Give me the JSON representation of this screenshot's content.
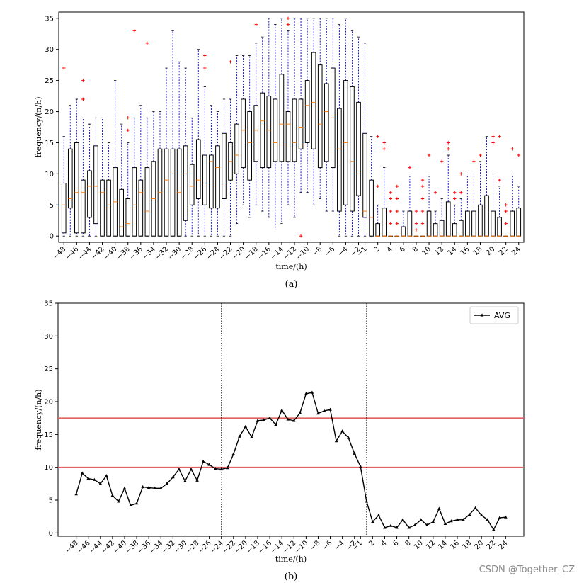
{
  "chart_data": [
    {
      "panel_label": "(a)",
      "type": "box",
      "xlabel": "time/(h)",
      "ylabel": "frequency/(n/h)",
      "ylim": [
        -1,
        36
      ],
      "yticks": [
        0,
        5,
        10,
        15,
        20,
        25,
        30,
        35
      ],
      "colors": {
        "box": "#000000",
        "whisker": "#0000cc",
        "median": "#ff7f0e",
        "flier": "#ff0000"
      },
      "grid": false,
      "x": [
        -48,
        -47,
        -46,
        -45,
        -44,
        -43,
        -42,
        -41,
        -40,
        -39,
        -38,
        -37,
        -36,
        -35,
        -34,
        -33,
        -32,
        -31,
        -30,
        -29,
        -28,
        -27,
        -26,
        -25,
        -24,
        -23,
        -22,
        -21,
        -20,
        -19,
        -18,
        -17,
        -16,
        -15,
        -14,
        -13,
        -12,
        -11,
        -10,
        -9,
        -8,
        -7,
        -6,
        -5,
        -4,
        -3,
        -2,
        -1,
        1,
        2,
        3,
        4,
        5,
        6,
        7,
        8,
        9,
        10,
        11,
        12,
        13,
        14,
        15,
        16,
        17,
        18,
        19,
        20,
        21,
        22,
        23,
        24
      ],
      "xtick_labels": [
        "−48",
        "−46",
        "−44",
        "−42",
        "−40",
        "−38",
        "−36",
        "−34",
        "−32",
        "−30",
        "−28",
        "−26",
        "−24",
        "−22",
        "−20",
        "−18",
        "−16",
        "−14",
        "−12",
        "−10",
        "−8",
        "−6",
        "−4",
        "−2",
        "−1",
        "2",
        "4",
        "6",
        "8",
        "10",
        "12",
        "14",
        "16",
        "18",
        "20",
        "22",
        "24"
      ],
      "xtick_values": [
        -48,
        -46,
        -44,
        -42,
        -40,
        -38,
        -36,
        -34,
        -32,
        -30,
        -28,
        -26,
        -24,
        -22,
        -20,
        -18,
        -16,
        -14,
        -12,
        -10,
        -8,
        -6,
        -4,
        -2,
        -1,
        2,
        4,
        6,
        8,
        10,
        12,
        14,
        16,
        18,
        20,
        22,
        24
      ],
      "boxes": [
        {
          "min": 0,
          "q1": 0.5,
          "med": 5,
          "q3": 8.5,
          "max": 16,
          "fliers": [
            27
          ]
        },
        {
          "min": 0,
          "q1": 4.5,
          "med": 6,
          "q3": 14,
          "max": 21,
          "fliers": []
        },
        {
          "min": 0,
          "q1": 0.5,
          "med": 7,
          "q3": 15,
          "max": 22,
          "fliers": []
        },
        {
          "min": 0,
          "q1": 0.5,
          "med": 7,
          "q3": 9,
          "max": 19,
          "fliers": [
            22,
            22,
            25
          ]
        },
        {
          "min": 0,
          "q1": 3,
          "med": 8,
          "q3": 10.5,
          "max": 18,
          "fliers": []
        },
        {
          "min": 0,
          "q1": 2,
          "med": 8,
          "q3": 14.5,
          "max": 19,
          "fliers": []
        },
        {
          "min": 0,
          "q1": 0,
          "med": 7,
          "q3": 9,
          "max": 19,
          "fliers": []
        },
        {
          "min": 0,
          "q1": 0,
          "med": 5,
          "q3": 9,
          "max": 15,
          "fliers": []
        },
        {
          "min": 0,
          "q1": 0,
          "med": 5.5,
          "q3": 11,
          "max": 25,
          "fliers": []
        },
        {
          "min": 0,
          "q1": 0,
          "med": 1.5,
          "q3": 7.5,
          "max": 18,
          "fliers": []
        },
        {
          "min": 0,
          "q1": 0,
          "med": 2,
          "q3": 6,
          "max": 15,
          "fliers": [
            17,
            19
          ]
        },
        {
          "min": 0,
          "q1": 0,
          "med": 5,
          "q3": 11,
          "max": 19,
          "fliers": [
            33
          ]
        },
        {
          "min": 0,
          "q1": 0,
          "med": 7,
          "q3": 9,
          "max": 21,
          "fliers": []
        },
        {
          "min": 0,
          "q1": 0,
          "med": 4,
          "q3": 11,
          "max": 19,
          "fliers": [
            31
          ]
        },
        {
          "min": 0,
          "q1": 0,
          "med": 6,
          "q3": 12,
          "max": 20,
          "fliers": []
        },
        {
          "min": 0,
          "q1": 0,
          "med": 7,
          "q3": 14,
          "max": 20,
          "fliers": []
        },
        {
          "min": 0,
          "q1": 0,
          "med": 9,
          "q3": 14,
          "max": 27,
          "fliers": []
        },
        {
          "min": 0,
          "q1": 0,
          "med": 10,
          "q3": 14,
          "max": 33,
          "fliers": []
        },
        {
          "min": 0,
          "q1": 0,
          "med": 7,
          "q3": 14,
          "max": 28,
          "fliers": []
        },
        {
          "min": 0,
          "q1": 2.5,
          "med": 10,
          "q3": 14.5,
          "max": 27,
          "fliers": []
        },
        {
          "min": 0,
          "q1": 5,
          "med": 8,
          "q3": 11.5,
          "max": 19,
          "fliers": []
        },
        {
          "min": 0,
          "q1": 6,
          "med": 9,
          "q3": 15.5,
          "max": 30,
          "fliers": []
        },
        {
          "min": 0,
          "q1": 5,
          "med": 8.5,
          "q3": 13,
          "max": 24,
          "fliers": [
            27,
            29
          ]
        },
        {
          "min": 0,
          "q1": 4.5,
          "med": 12,
          "q3": 13,
          "max": 21,
          "fliers": []
        },
        {
          "min": 0,
          "q1": 4.5,
          "med": 11,
          "q3": 14.5,
          "max": 20,
          "fliers": []
        },
        {
          "min": 0,
          "q1": 6,
          "med": 8.5,
          "q3": 16.5,
          "max": 22,
          "fliers": []
        },
        {
          "min": 0,
          "q1": 9,
          "med": 12,
          "q3": 15,
          "max": 22,
          "fliers": [
            28
          ]
        },
        {
          "min": 2,
          "q1": 10,
          "med": 13,
          "q3": 18,
          "max": 29,
          "fliers": []
        },
        {
          "min": 5,
          "q1": 11,
          "med": 17,
          "q3": 22,
          "max": 29,
          "fliers": []
        },
        {
          "min": 3,
          "q1": 9,
          "med": 15,
          "q3": 20,
          "max": 29,
          "fliers": []
        },
        {
          "min": 5,
          "q1": 12,
          "med": 17,
          "q3": 21,
          "max": 31,
          "fliers": [
            34
          ]
        },
        {
          "min": 4,
          "q1": 11,
          "med": 18.5,
          "q3": 23,
          "max": 32,
          "fliers": []
        },
        {
          "min": 3,
          "q1": 11,
          "med": 17,
          "q3": 22.5,
          "max": 35,
          "fliers": []
        },
        {
          "min": 1,
          "q1": 12,
          "med": 15,
          "q3": 22,
          "max": 34,
          "fliers": []
        },
        {
          "min": 2,
          "q1": 12,
          "med": 18,
          "q3": 26,
          "max": 35,
          "fliers": []
        },
        {
          "min": 5,
          "q1": 12,
          "med": 18,
          "q3": 20,
          "max": 33,
          "fliers": [
            34,
            35
          ]
        },
        {
          "min": 3,
          "q1": 12,
          "med": 15,
          "q3": 22,
          "max": 35,
          "fliers": []
        },
        {
          "min": 7,
          "q1": 14,
          "med": 17.5,
          "q3": 22,
          "max": 35,
          "fliers": [
            0
          ]
        },
        {
          "min": 7,
          "q1": 15,
          "med": 21,
          "q3": 25,
          "max": 35,
          "fliers": []
        },
        {
          "min": 5,
          "q1": 14,
          "med": 21.5,
          "q3": 29.5,
          "max": 35,
          "fliers": []
        },
        {
          "min": 6,
          "q1": 11,
          "med": 18,
          "q3": 27.5,
          "max": 35,
          "fliers": []
        },
        {
          "min": 4,
          "q1": 12,
          "med": 20,
          "q3": 24.5,
          "max": 35,
          "fliers": []
        },
        {
          "min": 4,
          "q1": 11,
          "med": 19,
          "q3": 27,
          "max": 35,
          "fliers": []
        },
        {
          "min": 0,
          "q1": 4,
          "med": 14,
          "q3": 20.5,
          "max": 34,
          "fliers": []
        },
        {
          "min": 0,
          "q1": 5,
          "med": 15,
          "q3": 25,
          "max": 35,
          "fliers": []
        },
        {
          "min": 0,
          "q1": 4,
          "med": 12,
          "q3": 24,
          "max": 33,
          "fliers": []
        },
        {
          "min": 0,
          "q1": 6.5,
          "med": 10,
          "q3": 21.5,
          "max": 32,
          "fliers": []
        },
        {
          "min": 0,
          "q1": 3,
          "med": 4,
          "q3": 16.5,
          "max": 31,
          "fliers": []
        },
        {
          "min": 0,
          "q1": 0,
          "med": 3,
          "q3": 9,
          "max": 16,
          "fliers": []
        },
        {
          "min": 0,
          "q1": 0,
          "med": 0,
          "q3": 2,
          "max": 5,
          "fliers": [
            8,
            16
          ]
        },
        {
          "min": 0,
          "q1": 0,
          "med": 0,
          "q3": 4.5,
          "max": 11,
          "fliers": [
            14,
            15
          ]
        },
        {
          "min": 0,
          "q1": 0,
          "med": 0,
          "q3": 0,
          "max": 0,
          "fliers": [
            2,
            4,
            6,
            7
          ]
        },
        {
          "min": 0,
          "q1": 0,
          "med": 0,
          "q3": 0,
          "max": 0,
          "fliers": [
            2,
            4,
            6,
            8
          ]
        },
        {
          "min": 0,
          "q1": 0,
          "med": 0,
          "q3": 1.5,
          "max": 4,
          "fliers": []
        },
        {
          "min": 0,
          "q1": 0,
          "med": 0,
          "q3": 4,
          "max": 10,
          "fliers": [
            11
          ]
        },
        {
          "min": 0,
          "q1": 0,
          "med": 0,
          "q3": 0,
          "max": 0,
          "fliers": [
            1,
            2,
            4
          ]
        },
        {
          "min": 0,
          "q1": 0,
          "med": 0,
          "q3": 0,
          "max": 0,
          "fliers": [
            2,
            4,
            6,
            8,
            9
          ]
        },
        {
          "min": 0,
          "q1": 0,
          "med": 0,
          "q3": 4,
          "max": 10,
          "fliers": [
            13
          ]
        },
        {
          "min": 0,
          "q1": 0,
          "med": 0,
          "q3": 2,
          "max": 4,
          "fliers": [
            7
          ]
        },
        {
          "min": 0,
          "q1": 0,
          "med": 0,
          "q3": 2.5,
          "max": 6,
          "fliers": [
            12
          ]
        },
        {
          "min": 0,
          "q1": 0,
          "med": 0,
          "q3": 5.5,
          "max": 13,
          "fliers": [
            14,
            15
          ]
        },
        {
          "min": 0,
          "q1": 0,
          "med": 0,
          "q3": 2,
          "max": 5,
          "fliers": [
            6,
            7
          ]
        },
        {
          "min": 0,
          "q1": 0,
          "med": 0,
          "q3": 2.5,
          "max": 6,
          "fliers": [
            7,
            10
          ]
        },
        {
          "min": 0,
          "q1": 0,
          "med": 0,
          "q3": 4,
          "max": 10,
          "fliers": []
        },
        {
          "min": 0,
          "q1": 0,
          "med": 0,
          "q3": 4,
          "max": 10,
          "fliers": [
            12
          ]
        },
        {
          "min": 0,
          "q1": 0,
          "med": 0,
          "q3": 5,
          "max": 12,
          "fliers": [
            13
          ]
        },
        {
          "min": 0,
          "q1": 0,
          "med": 0,
          "q3": 6.5,
          "max": 16,
          "fliers": []
        },
        {
          "min": 0,
          "q1": 0,
          "med": 0,
          "q3": 4,
          "max": 10,
          "fliers": [
            15,
            16
          ]
        },
        {
          "min": 0,
          "q1": 0,
          "med": 0,
          "q3": 3,
          "max": 8,
          "fliers": [
            9,
            16
          ]
        },
        {
          "min": 0,
          "q1": 0,
          "med": 0,
          "q3": 0,
          "max": 0,
          "fliers": [
            2,
            4,
            5
          ]
        },
        {
          "min": 0,
          "q1": 0,
          "med": 0,
          "q3": 4,
          "max": 10,
          "fliers": [
            14
          ]
        },
        {
          "min": 0,
          "q1": 0,
          "med": 0,
          "q3": 4.5,
          "max": 8,
          "fliers": [
            13
          ]
        }
      ]
    },
    {
      "panel_label": "(b)",
      "type": "line",
      "xlabel": "time/(h)",
      "ylabel": "frequency/(n/h)",
      "ylim": [
        -0.5,
        35
      ],
      "yticks": [
        0,
        5,
        10,
        15,
        20,
        25,
        30,
        35
      ],
      "xtick_labels": [
        "−48",
        "−46",
        "−44",
        "−42",
        "−40",
        "−38",
        "−36",
        "−34",
        "−32",
        "−30",
        "−28",
        "−26",
        "−24",
        "−22",
        "−20",
        "−18",
        "−16",
        "−14",
        "−12",
        "−10",
        "−8",
        "−6",
        "−4",
        "−2",
        "−1",
        "2",
        "4",
        "6",
        "8",
        "10",
        "12",
        "14",
        "16",
        "18",
        "20",
        "22",
        "24"
      ],
      "xtick_values": [
        -48,
        -46,
        -44,
        -42,
        -40,
        -38,
        -36,
        -34,
        -32,
        -30,
        -28,
        -26,
        -24,
        -22,
        -20,
        -18,
        -16,
        -14,
        -12,
        -10,
        -8,
        -6,
        -4,
        -2,
        -1,
        2,
        4,
        6,
        8,
        10,
        12,
        14,
        16,
        18,
        20,
        22,
        24
      ],
      "legend": "top-right",
      "grid": false,
      "series": [
        {
          "name": "AVG",
          "color": "#000000",
          "x": [
            -48,
            -47,
            -46,
            -45,
            -44,
            -43,
            -42,
            -41,
            -40,
            -39,
            -38,
            -37,
            -36,
            -35,
            -34,
            -33,
            -32,
            -31,
            -30,
            -29,
            -28,
            -27,
            -26,
            -25,
            -24,
            -23,
            -22,
            -21,
            -20,
            -19,
            -18,
            -17,
            -16,
            -15,
            -14,
            -13,
            -12,
            -11,
            -10,
            -9,
            -8,
            -7,
            -6,
            -5,
            -4,
            -3,
            -2,
            -1,
            1,
            2,
            3,
            4,
            5,
            6,
            7,
            8,
            9,
            10,
            11,
            12,
            13,
            14,
            15,
            16,
            17,
            18,
            19,
            20,
            21,
            22,
            23,
            24
          ],
          "values": [
            5.9,
            9.1,
            8.3,
            8.1,
            7.5,
            8.7,
            5.7,
            4.8,
            6.8,
            4.2,
            4.5,
            7.0,
            6.9,
            6.8,
            6.8,
            7.5,
            8.5,
            9.7,
            7.9,
            9.7,
            8.0,
            10.9,
            10.4,
            9.8,
            9.7,
            9.9,
            12.0,
            14.7,
            16.2,
            14.6,
            17.1,
            17.2,
            17.5,
            16.5,
            18.7,
            17.3,
            17.1,
            18.3,
            21.2,
            21.4,
            18.2,
            18.6,
            18.8,
            14.0,
            15.5,
            14.5,
            12.1,
            10.1,
            4.8,
            1.7,
            2.7,
            0.8,
            1.1,
            0.8,
            2.0,
            0.8,
            1.2,
            2.0,
            1.2,
            1.7,
            3.7,
            1.4,
            1.8,
            2.0,
            2.0,
            2.8,
            3.8,
            2.7,
            2.0,
            0.5,
            2.3,
            2.4
          ]
        }
      ],
      "reference_lines": {
        "horizontal": [
          17.5,
          10
        ],
        "horizontal_color": "#e06060",
        "vertical": [
          -24,
          1
        ],
        "vertical_style": "dotted"
      }
    }
  ],
  "watermark": "CSDN @Together_CZ"
}
